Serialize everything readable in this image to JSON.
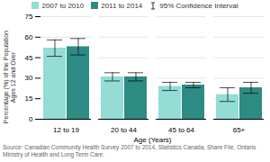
{
  "chart_data": {
    "type": "bar",
    "categories": [
      "12 to 19",
      "20 to 44",
      "45 to 64",
      "65+"
    ],
    "series": [
      {
        "name": "2007 to 2010",
        "color": "#93DDD5",
        "values": [
          52,
          31,
          24,
          18
        ],
        "ci_low": [
          46,
          28,
          21,
          13
        ],
        "ci_high": [
          58,
          34,
          27,
          23
        ]
      },
      {
        "name": "2011 to 2014",
        "color": "#2E8B84",
        "values": [
          53,
          31,
          25,
          23
        ],
        "ci_low": [
          47,
          28,
          23,
          19
        ],
        "ci_high": [
          59,
          34,
          27,
          27
        ]
      }
    ],
    "ci_label": "95% Confidence Interval",
    "xlabel": "Age (Years)",
    "ylabel": "Percentage (%) of the Population\nAges 12 and Over",
    "source": "Source: Canadian Community Health Survey 2007 to 2014, Statistics Canada, Share File, Ontario Ministry of Health and Long Term Care.",
    "ylim": [
      0,
      75
    ],
    "yticks": [
      0,
      15,
      30,
      45,
      60,
      75
    ],
    "grid": true,
    "legend": "top"
  }
}
